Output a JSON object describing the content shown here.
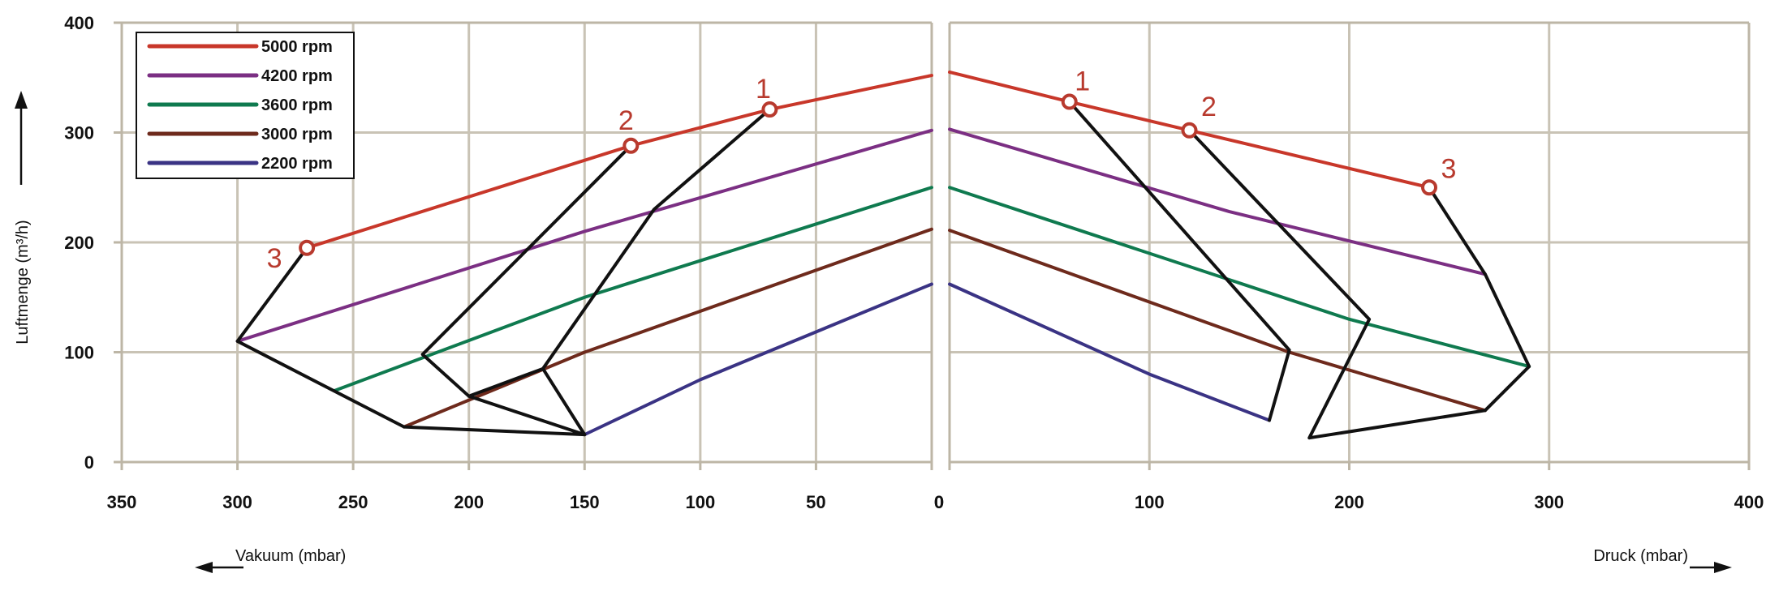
{
  "chart_data": {
    "type": "line",
    "colors": {
      "grid": "#c9c3b5",
      "spine": "#bdb6a6",
      "envelope": "#111111",
      "marker": "#b83a2e"
    },
    "ylabel": "Luftmenge (m³/h)",
    "yticks": [
      "0",
      "100",
      "200",
      "300",
      "400"
    ],
    "ylim": [
      0,
      400
    ],
    "legend": {
      "placement": "top-left",
      "entries": [
        {
          "label": "5000 rpm",
          "color": "#c8372a"
        },
        {
          "label": "4200 rpm",
          "color": "#7b2f83"
        },
        {
          "label": "3600 rpm",
          "color": "#0f7a4f"
        },
        {
          "label": "3000 rpm",
          "color": "#6e2a1c"
        },
        {
          "label": "2200 rpm",
          "color": "#3a3384"
        }
      ]
    },
    "panels": [
      {
        "name": "vacuum",
        "xlabel": "Vakuum (mbar)",
        "xticks": [
          "350",
          "300",
          "250",
          "200",
          "150",
          "100",
          "50",
          "0"
        ],
        "xlim": [
          350,
          0
        ],
        "series": [
          {
            "name": "5000 rpm",
            "color": "#c8372a",
            "x": [
              270,
              130,
              70,
              0
            ],
            "y": [
              195,
              288,
              321,
              352
            ]
          },
          {
            "name": "4200 rpm",
            "color": "#7b2f83",
            "x": [
              300,
              150,
              0
            ],
            "y": [
              110,
              210,
              302
            ]
          },
          {
            "name": "3600 rpm",
            "color": "#0f7a4f",
            "x": [
              258,
              150,
              0
            ],
            "y": [
              65,
              150,
              250
            ]
          },
          {
            "name": "3000 rpm",
            "color": "#6e2a1c",
            "x": [
              228,
              150,
              0
            ],
            "y": [
              32,
              100,
              212
            ]
          },
          {
            "name": "2200 rpm",
            "color": "#3a3384",
            "x": [
              150,
              100,
              0
            ],
            "y": [
              25,
              75,
              162
            ]
          }
        ],
        "envelope_lines": [
          {
            "x": [
              270,
              300,
              228,
              150,
              200,
              220,
              130
            ],
            "y": [
              195,
              110,
              32,
              25,
              60,
              98,
              288
            ]
          },
          {
            "x": [
              150,
              168,
              200
            ],
            "y": [
              25,
              85,
              60
            ]
          },
          {
            "x": [
              168,
              120,
              70
            ],
            "y": [
              85,
              230,
              321
            ]
          }
        ],
        "points": [
          {
            "label": "1",
            "x": 70,
            "y": 321
          },
          {
            "label": "2",
            "x": 130,
            "y": 288
          },
          {
            "label": "3",
            "x": 270,
            "y": 195
          }
        ]
      },
      {
        "name": "pressure",
        "xlabel": "Druck (mbar)",
        "xticks": [
          "0",
          "100",
          "200",
          "300",
          "400"
        ],
        "xlim": [
          0,
          400
        ],
        "series": [
          {
            "name": "5000 rpm",
            "color": "#c8372a",
            "x": [
              0,
              60,
              120,
              240
            ],
            "y": [
              355,
              328,
              302,
              250
            ]
          },
          {
            "name": "4200 rpm",
            "color": "#7b2f83",
            "x": [
              0,
              140,
              268
            ],
            "y": [
              303,
              228,
              171
            ]
          },
          {
            "name": "3600 rpm",
            "color": "#0f7a4f",
            "x": [
              0,
              200,
              290
            ],
            "y": [
              250,
              130,
              87
            ]
          },
          {
            "name": "3000 rpm",
            "color": "#6e2a1c",
            "x": [
              0,
              170,
              268
            ],
            "y": [
              211,
              100,
              47
            ]
          },
          {
            "name": "2200 rpm",
            "color": "#3a3384",
            "x": [
              0,
              100,
              160
            ],
            "y": [
              162,
              80,
              38
            ]
          }
        ],
        "envelope_lines": [
          {
            "x": [
              60,
              170,
              160
            ],
            "y": [
              328,
              102,
              38
            ]
          },
          {
            "x": [
              120,
              210,
              180,
              268,
              290,
              268,
              240
            ],
            "y": [
              302,
              130,
              22,
              47,
              87,
              171,
              250
            ]
          }
        ],
        "points": [
          {
            "label": "1",
            "x": 60,
            "y": 328
          },
          {
            "label": "2",
            "x": 120,
            "y": 302
          },
          {
            "label": "3",
            "x": 240,
            "y": 250
          }
        ]
      }
    ]
  }
}
